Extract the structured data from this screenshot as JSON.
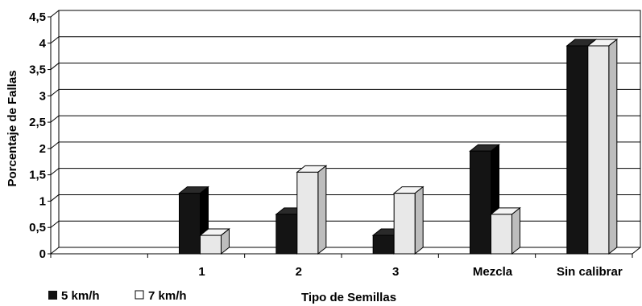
{
  "chart_data": {
    "type": "bar",
    "title": "",
    "xlabel": "Tipo de Semillas",
    "ylabel": "Porcentaje de Fallas",
    "categories": [
      "",
      "1",
      "2",
      "3",
      "Mezcla",
      "Sin calibrar"
    ],
    "series": [
      {
        "name": "5 km/h",
        "values": [
          0,
          1.15,
          0.75,
          0.35,
          1.95,
          3.95
        ],
        "color": "#111111"
      },
      {
        "name": "7 km/h",
        "values": [
          0,
          0.35,
          1.55,
          1.15,
          0.75,
          3.95
        ],
        "color": "#e6e6e6"
      }
    ],
    "yticks": [
      "0",
      "0,5",
      "1",
      "1,5",
      "2",
      "2,5",
      "3",
      "3,5",
      "4",
      "4,5"
    ],
    "ylim": [
      0,
      4.5
    ],
    "grid": true,
    "legend": "bottom-left"
  }
}
